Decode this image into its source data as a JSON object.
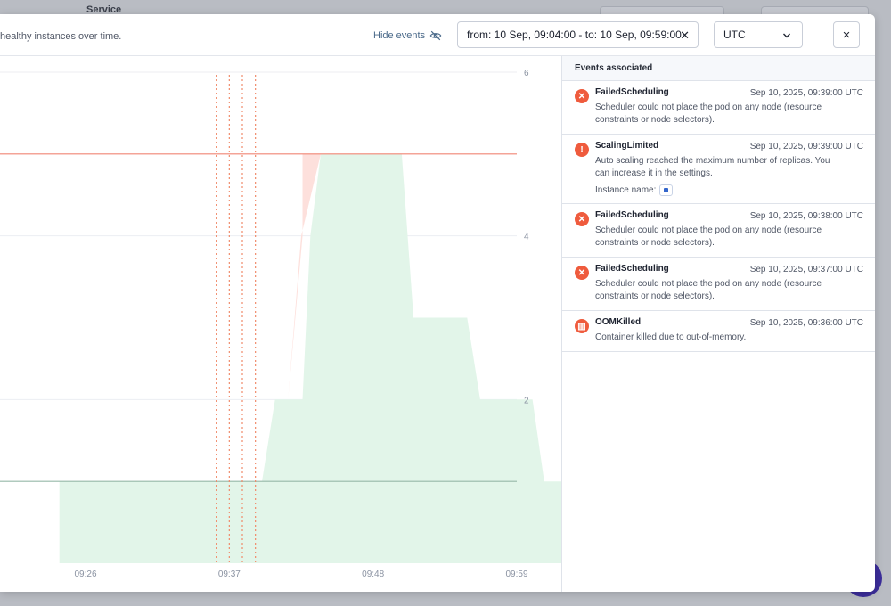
{
  "background": {
    "service_label": "Service"
  },
  "header": {
    "subtitle": "healthy instances over time.",
    "hide_events_label": "Hide events",
    "date_range": "from: 10 Sep, 09:04:00 - to: 10 Sep, 09:59:00",
    "timezone": "UTC",
    "close_label": "×"
  },
  "chart_data": {
    "type": "area",
    "x_ticks": [
      "09:26",
      "09:37",
      "09:48",
      "09:59"
    ],
    "y_ticks": [
      "2",
      "4",
      "6"
    ],
    "ylim": [
      0,
      6
    ],
    "max_replicas_line": 5,
    "min_replicas_line": 1,
    "event_marker_times": [
      "09:36",
      "09:37",
      "09:38",
      "09:39"
    ],
    "series": [
      {
        "name": "healthy",
        "color": "#e2f5e9",
        "points": [
          [
            0,
            1
          ],
          [
            15.5,
            1
          ],
          [
            16.5,
            2
          ],
          [
            18.6,
            2
          ],
          [
            19.2,
            4
          ],
          [
            20.0,
            5
          ],
          [
            26.2,
            5
          ],
          [
            27.1,
            3
          ],
          [
            31.2,
            3
          ],
          [
            32.2,
            2
          ],
          [
            36.2,
            2
          ],
          [
            37.1,
            1
          ],
          [
            39.3,
            1
          ]
        ]
      },
      {
        "name": "unhealthy",
        "color": "#fde0dc",
        "points": [
          [
            16.5,
            2
          ],
          [
            17.5,
            2
          ],
          [
            18.5,
            4
          ],
          [
            20.0,
            5
          ],
          [
            18.6,
            5
          ],
          [
            18.6,
            4
          ],
          [
            17.5,
            2
          ]
        ]
      }
    ],
    "colors": {
      "limit_line": "#f08575",
      "baseline": "#96b8a8",
      "marker": "#f08a6a",
      "grid": "#eceef2"
    }
  },
  "events": {
    "header": "Events associated",
    "items": [
      {
        "icon": "error-x-icon",
        "glyph": "✕",
        "title": "FailedScheduling",
        "time": "Sep 10, 2025, 09:39:00 UTC",
        "description": "Scheduler could not place the pod on any node (resource constraints or node selectors)."
      },
      {
        "icon": "warning-exclamation-icon",
        "glyph": "!",
        "title": "ScalingLimited",
        "time": "Sep 10, 2025, 09:39:00 UTC",
        "description": "Auto scaling reached the maximum number of replicas. You can increase it in the settings.",
        "instance_label": "Instance name:"
      },
      {
        "icon": "error-x-icon",
        "glyph": "✕",
        "title": "FailedScheduling",
        "time": "Sep 10, 2025, 09:38:00 UTC",
        "description": "Scheduler could not place the pod on any node (resource constraints or node selectors)."
      },
      {
        "icon": "error-x-icon",
        "glyph": "✕",
        "title": "FailedScheduling",
        "time": "Sep 10, 2025, 09:37:00 UTC",
        "description": "Scheduler could not place the pod on any node (resource constraints or node selectors)."
      },
      {
        "icon": "memory-chip-icon",
        "glyph": "▥",
        "title": "OOMKilled",
        "time": "Sep 10, 2025, 09:36:00 UTC",
        "description": "Container killed due to out-of-memory."
      }
    ]
  }
}
